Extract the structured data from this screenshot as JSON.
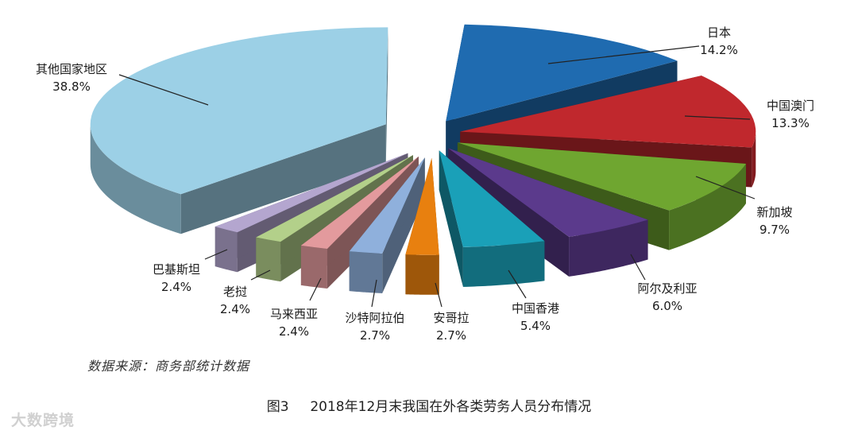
{
  "chart_data": {
    "type": "pie",
    "title": "2018年12月末我国在外各类劳务人员分布情况",
    "figure_label": "图3",
    "slices": [
      {
        "label": "日本",
        "value": 14.2,
        "display": "14.2%",
        "color": "#1f6bb0"
      },
      {
        "label": "中国澳门",
        "value": 13.3,
        "display": "13.3%",
        "color": "#c0282d"
      },
      {
        "label": "新加坡",
        "value": 9.7,
        "display": "9.7%",
        "color": "#6fa630"
      },
      {
        "label": "阿尔及利亚",
        "value": 6.0,
        "display": "6.0%",
        "color": "#5b3a8c"
      },
      {
        "label": "中国香港",
        "value": 5.4,
        "display": "5.4%",
        "color": "#1aa0b8"
      },
      {
        "label": "安哥拉",
        "value": 2.7,
        "display": "2.7%",
        "color": "#e8800f"
      },
      {
        "label": "沙特阿拉伯",
        "value": 2.7,
        "display": "2.7%",
        "color": "#8fb0dc"
      },
      {
        "label": "马来西亚",
        "value": 2.4,
        "display": "2.4%",
        "color": "#e39a9d"
      },
      {
        "label": "老挝",
        "value": 2.4,
        "display": "2.4%",
        "color": "#b3d08a"
      },
      {
        "label": "巴基斯坦",
        "value": 2.4,
        "display": "2.4%",
        "color": "#b4a6cf"
      },
      {
        "label": "其他国家地区",
        "value": 38.8,
        "display": "38.8%",
        "color": "#9cd0e6"
      }
    ]
  },
  "source_note": "数据来源：商务部统计数据",
  "watermark": "大数跨境"
}
